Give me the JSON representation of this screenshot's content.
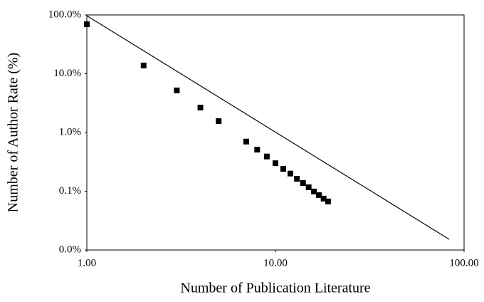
{
  "chart_data": {
    "type": "scatter",
    "x_label": "Number of Publication Literature",
    "y_label": "Number of Author Rate (%)",
    "xscale": "log",
    "yscale": "log",
    "xlim": [
      1,
      100
    ],
    "ylim": [
      0.01,
      100
    ],
    "xticks": [
      {
        "value": 1,
        "label": "1.00"
      },
      {
        "value": 10,
        "label": "10.00"
      },
      {
        "value": 100,
        "label": "100.00"
      }
    ],
    "yticks": [
      {
        "value": 0.01,
        "label": "0.0%"
      },
      {
        "value": 0.1,
        "label": "0.1%"
      },
      {
        "value": 1,
        "label": "1.0%"
      },
      {
        "value": 10,
        "label": "10.0%"
      },
      {
        "value": 100,
        "label": "100.0%"
      }
    ],
    "series": [
      {
        "style": "markers",
        "color": "#000000",
        "x": [
          1,
          2,
          3,
          4,
          5,
          7,
          8,
          9,
          10,
          11,
          12,
          13,
          14,
          15,
          16,
          17,
          18,
          19
        ],
        "values": [
          69.5,
          13.8,
          5.2,
          2.65,
          1.56,
          0.7,
          0.51,
          0.39,
          0.3,
          0.24,
          0.2,
          0.163,
          0.138,
          0.117,
          0.099,
          0.086,
          0.075,
          0.067
        ]
      },
      {
        "style": "line",
        "color": "#000000",
        "x": [
          1,
          83.4
        ],
        "values": [
          97,
          0.0152
        ]
      }
    ]
  }
}
